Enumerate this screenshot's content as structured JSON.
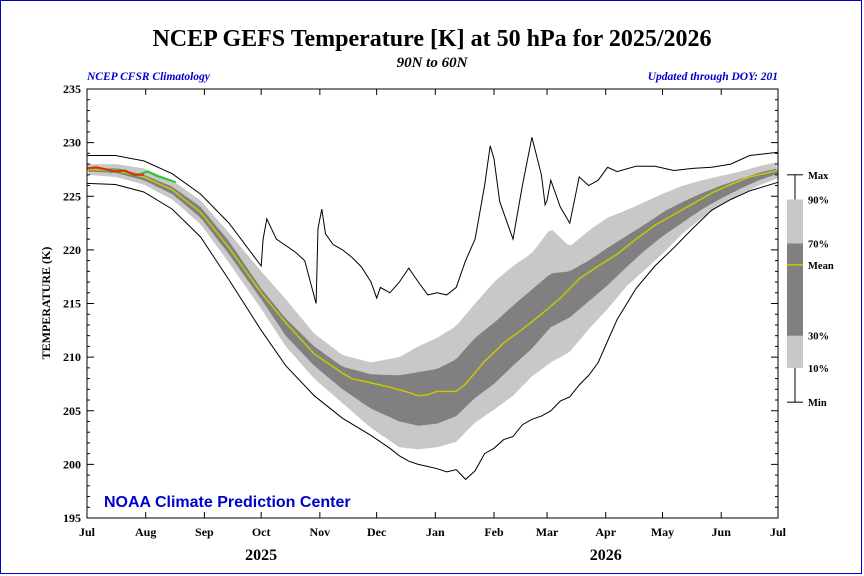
{
  "title": "NCEP GEFS Temperature [K] at 50 hPa for 2025/2026",
  "subtitle": "90N to 60N",
  "left_note": "NCEP CFSR Climatology",
  "right_note": "Updated through DOY: 201",
  "credit": "NOAA Climate Prediction Center",
  "colors": {
    "frame": "#0000cc",
    "band_10_90": "#c8c8c8",
    "band_30_70": "#808080",
    "mean": "#c8c800",
    "observed": "#e03000",
    "forecast": "#22cc22",
    "minmax": "#000000"
  },
  "chart_data": {
    "type": "area",
    "title": "NCEP GEFS Temperature [K] at 50 hPa for 2025/2026",
    "ylabel": "TEMPERATURE (K)",
    "xlabel": "",
    "xlim": [
      0,
      365
    ],
    "ylim": [
      195,
      235
    ],
    "yticks": [
      195,
      200,
      205,
      210,
      215,
      220,
      225,
      230,
      235
    ],
    "month_labels": [
      "Jul",
      "Aug",
      "Sep",
      "Oct",
      "Nov",
      "Dec",
      "Jan",
      "Feb",
      "Mar",
      "Apr",
      "May",
      "Jun",
      "Jul"
    ],
    "month_days": [
      0,
      31,
      62,
      92,
      123,
      153,
      184,
      215,
      243,
      274,
      304,
      335,
      365
    ],
    "year_labels": [
      {
        "label": "2025",
        "day": 92
      },
      {
        "label": "2026",
        "day": 274
      }
    ],
    "grid": false,
    "legend_position": "right",
    "legend": [
      {
        "label": "Max",
        "value": 227.0
      },
      {
        "label": "90%",
        "value": 224.7
      },
      {
        "label": "70%",
        "value": 220.6
      },
      {
        "label": "Mean",
        "value": 218.6
      },
      {
        "label": "30%",
        "value": 212.0
      },
      {
        "label": "10%",
        "value": 209.0
      },
      {
        "label": "Min",
        "value": 205.8
      }
    ],
    "series": [
      {
        "name": "Max",
        "x": [
          0,
          15,
          30,
          45,
          60,
          75,
          92,
          93,
          95,
          100,
          110,
          115,
          121,
          122,
          124,
          126,
          130,
          135,
          140,
          145,
          150,
          153,
          155,
          160,
          165,
          170,
          175,
          180,
          185,
          190,
          195,
          200,
          205,
          210,
          213,
          215,
          218,
          221,
          225,
          230,
          235,
          240,
          242,
          243,
          245,
          250,
          255,
          260,
          265,
          270,
          275,
          280,
          290,
          300,
          310,
          320,
          330,
          340,
          350,
          365
        ],
        "values": [
          228.8,
          228.8,
          228.3,
          227.1,
          225.2,
          222.5,
          218.5,
          221,
          222.9,
          221,
          219.8,
          219,
          215,
          222,
          223.8,
          221.5,
          220.5,
          220,
          219.3,
          218.4,
          217,
          215.5,
          216.5,
          216,
          217,
          218.3,
          217,
          215.8,
          216,
          215.8,
          216.5,
          219,
          221,
          226,
          229.7,
          228.5,
          224.5,
          223,
          221,
          226,
          230.5,
          227,
          224.2,
          224.6,
          226.5,
          224,
          222.5,
          226.8,
          226,
          226.5,
          227.7,
          227.3,
          227.8,
          227.8,
          227.4,
          227.6,
          227.7,
          228,
          228.8,
          229.1
        ]
      },
      {
        "name": "90%",
        "x": [
          0,
          15,
          30,
          45,
          60,
          75,
          92,
          105,
          120,
          135,
          150,
          165,
          175,
          185,
          195,
          205,
          215,
          225,
          235,
          245,
          255,
          265,
          275,
          285,
          295,
          305,
          315,
          325,
          335,
          345,
          355,
          365
        ],
        "values": [
          228,
          228,
          227.6,
          226.5,
          224.6,
          221.6,
          218,
          215.4,
          212.2,
          210.2,
          209.5,
          210,
          211,
          211.8,
          212.9,
          215,
          217,
          218.5,
          219.7,
          222,
          220.3,
          221.8,
          223,
          223.7,
          224.5,
          225.3,
          226,
          226.5,
          226.9,
          227.3,
          227.8,
          228.2
        ]
      },
      {
        "name": "70%",
        "x": [
          0,
          15,
          30,
          45,
          60,
          75,
          92,
          105,
          120,
          135,
          150,
          165,
          175,
          185,
          195,
          205,
          215,
          225,
          235,
          245,
          255,
          265,
          275,
          285,
          295,
          305,
          315,
          325,
          335,
          345,
          355,
          365
        ],
        "values": [
          227.6,
          227.6,
          227,
          225.9,
          224,
          220.8,
          216.4,
          213.6,
          211,
          209.1,
          208.4,
          208.3,
          208.6,
          208.9,
          209.8,
          211.8,
          213.2,
          214.8,
          216.3,
          217.8,
          218,
          219,
          220.2,
          221.3,
          222.4,
          223.6,
          224.5,
          225.3,
          226,
          226.6,
          227.2,
          227.6
        ]
      },
      {
        "name": "Mean",
        "x": [
          0,
          15,
          30,
          45,
          60,
          75,
          92,
          105,
          120,
          135,
          140,
          150,
          160,
          170,
          175,
          180,
          185,
          190,
          195,
          200,
          210,
          220,
          230,
          240,
          250,
          260,
          270,
          280,
          290,
          300,
          310,
          320,
          330,
          340,
          350,
          365
        ],
        "values": [
          227.5,
          227.4,
          226.8,
          225.6,
          223.5,
          220.2,
          216,
          213.2,
          210.3,
          208.5,
          208,
          207.6,
          207.2,
          206.7,
          206.4,
          206.5,
          206.8,
          206.8,
          206.8,
          207.5,
          209.6,
          211.3,
          212.6,
          214,
          215.5,
          217.3,
          218.5,
          219.6,
          221,
          222.3,
          223.3,
          224.3,
          225.3,
          226.1,
          226.8,
          227.4
        ]
      },
      {
        "name": "30%",
        "x": [
          0,
          15,
          30,
          45,
          60,
          75,
          92,
          105,
          120,
          135,
          150,
          165,
          175,
          185,
          195,
          205,
          215,
          225,
          235,
          245,
          255,
          265,
          275,
          285,
          295,
          305,
          315,
          325,
          335,
          345,
          355,
          365
        ],
        "values": [
          227.3,
          227.2,
          226.5,
          225.2,
          223,
          219.6,
          215.4,
          212,
          209.2,
          207,
          205.2,
          204,
          203.6,
          203.8,
          204.5,
          206.2,
          207.5,
          209.2,
          210.8,
          212.8,
          213.7,
          215.2,
          216.7,
          218.4,
          220,
          221.4,
          222.6,
          223.8,
          224.8,
          225.7,
          226.5,
          227.1
        ]
      },
      {
        "name": "10%",
        "x": [
          0,
          15,
          30,
          45,
          60,
          75,
          92,
          105,
          120,
          135,
          150,
          165,
          175,
          185,
          195,
          205,
          215,
          225,
          235,
          245,
          255,
          265,
          275,
          285,
          295,
          305,
          315,
          325,
          335,
          345,
          355,
          365
        ],
        "values": [
          227,
          226.8,
          226.1,
          224.7,
          222.4,
          218.8,
          214.5,
          211,
          208,
          205.7,
          203.4,
          201.6,
          201.4,
          201.6,
          202.1,
          203.9,
          205.1,
          206.4,
          208.2,
          209.5,
          210.5,
          212.6,
          214.5,
          216.6,
          218.2,
          219.8,
          221.6,
          223,
          224.2,
          225.2,
          226,
          226.7
        ]
      },
      {
        "name": "Min",
        "x": [
          0,
          15,
          30,
          45,
          60,
          75,
          92,
          105,
          120,
          135,
          150,
          160,
          165,
          170,
          175,
          180,
          185,
          190,
          195,
          200,
          205,
          210,
          215,
          220,
          225,
          230,
          235,
          240,
          245,
          250,
          255,
          260,
          265,
          270,
          275,
          280,
          290,
          300,
          310,
          320,
          330,
          340,
          350,
          365
        ],
        "values": [
          226.2,
          226.1,
          225.4,
          223.8,
          221.2,
          217.2,
          212.5,
          209.2,
          206.4,
          204.3,
          202.7,
          201.5,
          200.8,
          200.3,
          200,
          199.8,
          199.6,
          199.3,
          199.5,
          198.6,
          199.4,
          201,
          201.5,
          202.3,
          202.6,
          203.7,
          204.2,
          204.5,
          205,
          205.9,
          206.3,
          207.4,
          208.3,
          209.5,
          211.5,
          213.5,
          216.4,
          218.5,
          220.2,
          222,
          223.7,
          224.7,
          225.5,
          226.3
        ]
      },
      {
        "name": "Observed",
        "x": [
          0,
          5,
          10,
          15,
          20,
          25,
          30
        ],
        "values": [
          227.6,
          227.7,
          227.5,
          227.3,
          227.4,
          227,
          227
        ]
      },
      {
        "name": "Forecast",
        "x": [
          12,
          17,
          22,
          27,
          32,
          37,
          42,
          47
        ],
        "values": [
          227.2,
          227.5,
          227.2,
          227,
          227.3,
          226.9,
          226.6,
          226.3
        ]
      }
    ]
  }
}
